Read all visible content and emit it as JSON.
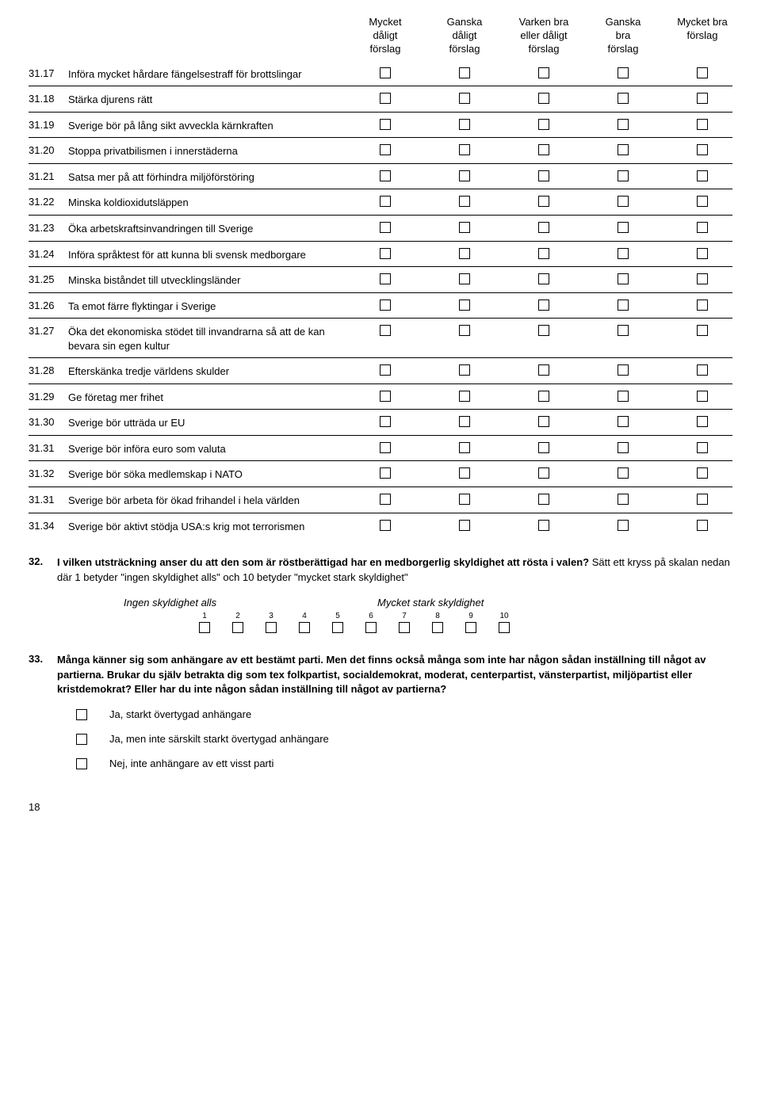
{
  "headers": [
    "Mycket\ndåligt\nförslag",
    "Ganska\ndåligt\nförslag",
    "Varken bra\neller dåligt\nförslag",
    "Ganska\nbra\nförslag",
    "Mycket bra\nförslag"
  ],
  "items": [
    {
      "num": "31.17",
      "text": "Införa mycket hårdare fängelsestraff för brottslingar"
    },
    {
      "num": "31.18",
      "text": "Stärka djurens rätt"
    },
    {
      "num": "31.19",
      "text": "Sverige bör på lång sikt avveckla kärnkraften"
    },
    {
      "num": "31.20",
      "text": "Stoppa privatbilismen i innerstäderna"
    },
    {
      "num": "31.21",
      "text": "Satsa mer på att förhindra miljöförstöring"
    },
    {
      "num": "31.22",
      "text": "Minska koldioxidutsläppen"
    },
    {
      "num": "31.23",
      "text": "Öka arbetskraftsinvandringen till Sverige"
    },
    {
      "num": "31.24",
      "text": "Införa språktest för att kunna bli svensk medborgare"
    },
    {
      "num": "31.25",
      "text": "Minska biståndet till utvecklingsländer"
    },
    {
      "num": "31.26",
      "text": "Ta emot färre flyktingar i Sverige"
    },
    {
      "num": "31.27",
      "text": "Öka det ekonomiska stödet till invandrarna så att de kan bevara sin egen kultur"
    },
    {
      "num": "31.28",
      "text": "Efterskänka tredje världens skulder"
    },
    {
      "num": "31.29",
      "text": "Ge företag mer frihet"
    },
    {
      "num": "31.30",
      "text": "Sverige bör utträda ur EU"
    },
    {
      "num": "31.31",
      "text": "Sverige bör införa euro som valuta"
    },
    {
      "num": "31.32",
      "text": "Sverige bör söka medlemskap i NATO"
    },
    {
      "num": "31.31",
      "text": "Sverige bör arbeta för ökad frihandel i hela världen"
    },
    {
      "num": "31.34",
      "text": "Sverige bör aktivt stödja USA:s krig mot terrorismen"
    }
  ],
  "q32": {
    "num": "32.",
    "bold1": "I vilken utsträckning anser du att den som är röstberättigad har en medborgerlig skyldighet att rösta i valen?",
    "rest": " Sätt ett kryss på skalan nedan där 1 betyder \"ingen skyldighet alls\" och 10 betyder \"mycket stark skyldighet\"",
    "leftLabel": "Ingen skyldighet alls",
    "rightLabel": "Mycket stark skyldighet",
    "scale": [
      "1",
      "2",
      "3",
      "4",
      "5",
      "6",
      "7",
      "8",
      "9",
      "10"
    ]
  },
  "q33": {
    "num": "33.",
    "text": "Många känner sig som anhängare av ett bestämt parti. Men det finns också många som inte har någon sådan inställning till något av partierna. Brukar du själv betrakta dig som tex folkpartist, socialdemokrat, moderat, centerpartist, vänsterpartist, miljöpartist eller kristdemokrat? Eller har du inte någon sådan inställning till något av partierna?",
    "options": [
      "Ja, starkt övertygad anhängare",
      "Ja, men inte särskilt starkt övertygad anhängare",
      "Nej, inte anhängare av ett visst parti"
    ]
  },
  "pageNumber": "18"
}
